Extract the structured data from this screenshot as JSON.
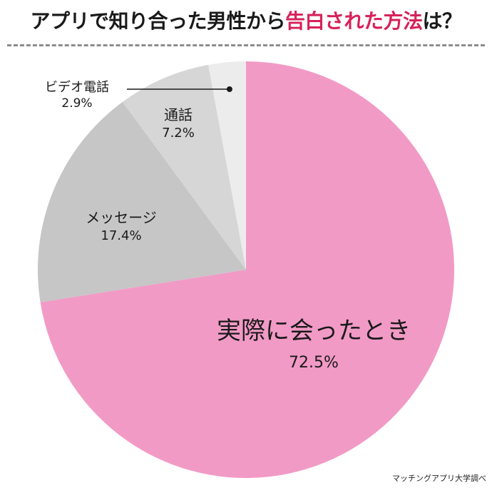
{
  "title": {
    "prefix": "アプリで知り合った男性から",
    "accent": "告白された方法",
    "suffix": "は？"
  },
  "colors": {
    "accent": "#d6225a",
    "slices": [
      "#f29ac6",
      "#c6c6c6",
      "#d6d6d6",
      "#ececec"
    ]
  },
  "chart_data": {
    "type": "pie",
    "slices": [
      {
        "label": "実際に会ったとき",
        "value": 72.5,
        "value_label": "72.5%"
      },
      {
        "label": "メッセージ",
        "value": 17.4,
        "value_label": "17.4%"
      },
      {
        "label": "通話",
        "value": 7.2,
        "value_label": "7.2%"
      },
      {
        "label": "ビデオ電話",
        "value": 2.9,
        "value_label": "2.9%"
      }
    ],
    "start": "12 o'clock",
    "direction": "clockwise",
    "legend": "none"
  },
  "credit": "マッチングアプリ大学調べ"
}
